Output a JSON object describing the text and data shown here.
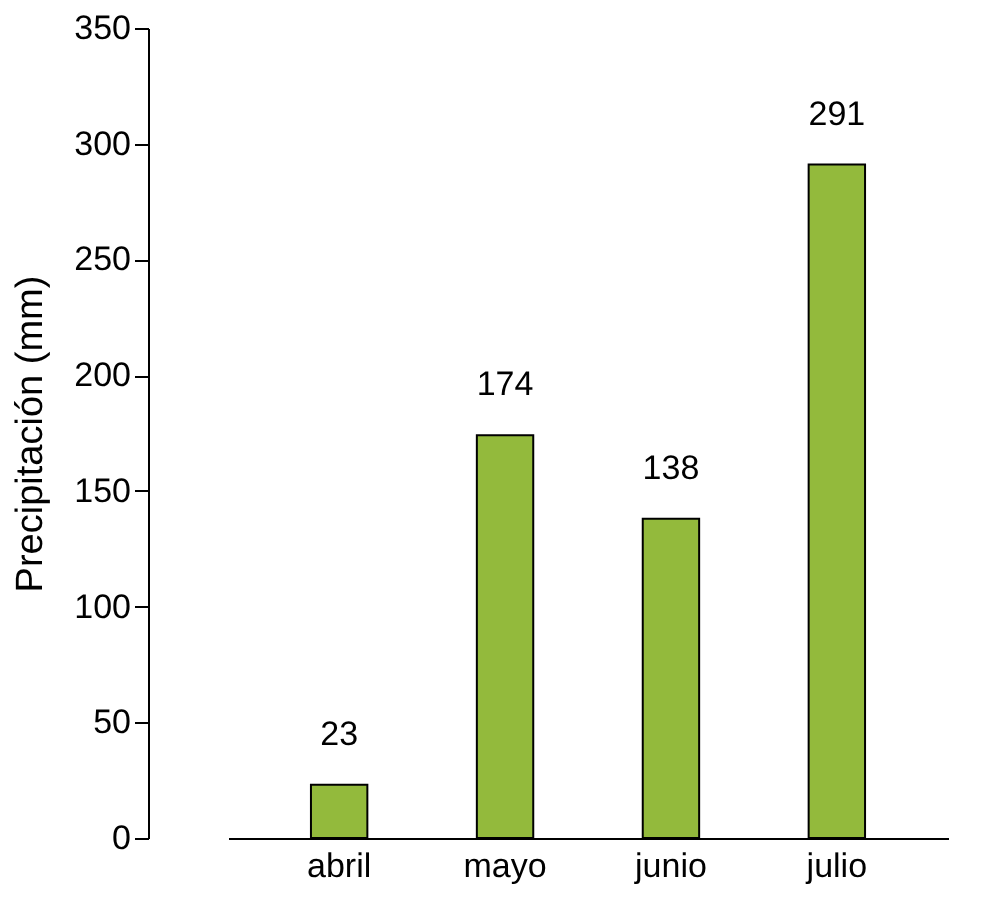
{
  "chart_data": {
    "type": "bar",
    "ylabel": "Precipitación (mm)",
    "categories": [
      "abril",
      "mayo",
      "junio",
      "julio"
    ],
    "values": [
      23,
      174,
      138,
      291
    ],
    "color": "#93ba3c",
    "ylim": [
      0,
      350
    ],
    "yticks": [
      0,
      50,
      100,
      150,
      200,
      250,
      300,
      350
    ],
    "grid": false,
    "data_labels": true
  }
}
